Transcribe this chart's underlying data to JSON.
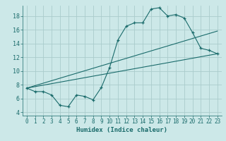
{
  "background_color": "#cce8e8",
  "grid_color": "#aacccc",
  "line_color": "#1a6b6b",
  "xlabel": "Humidex (Indice chaleur)",
  "xlim": [
    -0.5,
    23.5
  ],
  "ylim": [
    3.5,
    19.5
  ],
  "yticks": [
    4,
    6,
    8,
    10,
    12,
    14,
    16,
    18
  ],
  "xticks": [
    0,
    1,
    2,
    3,
    4,
    5,
    6,
    7,
    8,
    9,
    10,
    11,
    12,
    13,
    14,
    15,
    16,
    17,
    18,
    19,
    20,
    21,
    22,
    23
  ],
  "line1_x": [
    0,
    1,
    2,
    3,
    4,
    5,
    6,
    7,
    8,
    9,
    10,
    11,
    12,
    13,
    14,
    15,
    16,
    17,
    18,
    19,
    20,
    21,
    22,
    23
  ],
  "line1_y": [
    7.5,
    7.0,
    7.0,
    6.5,
    5.0,
    4.8,
    6.5,
    6.3,
    5.8,
    7.6,
    10.5,
    14.5,
    16.5,
    17.0,
    17.0,
    19.0,
    19.2,
    18.0,
    18.2,
    17.7,
    15.6,
    13.3,
    13.0,
    12.5
  ],
  "line2_x": [
    0,
    23
  ],
  "line2_y": [
    7.5,
    12.5
  ],
  "line3_x": [
    0,
    23
  ],
  "line3_y": [
    7.5,
    15.8
  ]
}
